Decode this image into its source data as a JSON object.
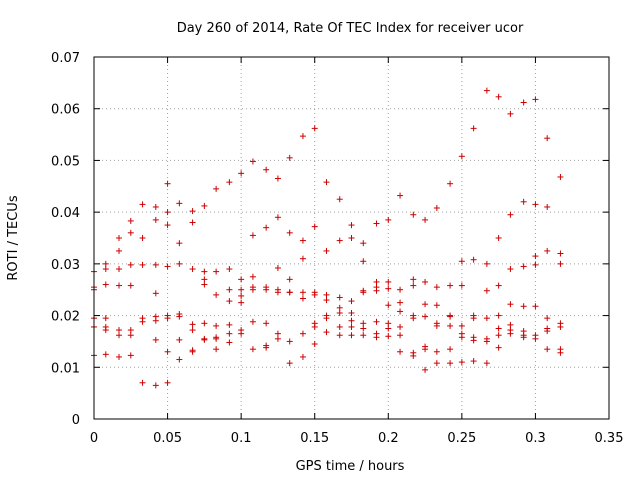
{
  "chart_data": {
    "type": "scatter",
    "title": "Day 260 of 2014, Rate Of TEC Index for receiver ucor",
    "xlabel": "GPS time / hours",
    "ylabel": "ROTI / TECUs",
    "xlim": [
      0,
      0.35
    ],
    "ylim": [
      0,
      0.07
    ],
    "xticks": [
      "0",
      "0.05",
      "0.1",
      "0.15",
      "0.2",
      "0.25",
      "0.3",
      "0.35"
    ],
    "yticks": [
      "0",
      "0.01",
      "0.02",
      "0.03",
      "0.04",
      "0.05",
      "0.06",
      "0.07"
    ],
    "grid": true,
    "marker": "+",
    "color": "#cc0000",
    "points": [
      [
        0.0,
        0.025
      ],
      [
        0.0,
        0.0255
      ],
      [
        0.0,
        0.0285
      ],
      [
        0.0,
        0.0195
      ],
      [
        0.0,
        0.0178
      ],
      [
        0.0,
        0.0123
      ],
      [
        0.008,
        0.03
      ],
      [
        0.008,
        0.029
      ],
      [
        0.008,
        0.026
      ],
      [
        0.008,
        0.0195
      ],
      [
        0.008,
        0.0178
      ],
      [
        0.008,
        0.0172
      ],
      [
        0.008,
        0.0125
      ],
      [
        0.017,
        0.035
      ],
      [
        0.017,
        0.0325
      ],
      [
        0.017,
        0.029
      ],
      [
        0.017,
        0.0258
      ],
      [
        0.017,
        0.0172
      ],
      [
        0.017,
        0.0162
      ],
      [
        0.017,
        0.012
      ],
      [
        0.025,
        0.0383
      ],
      [
        0.025,
        0.036
      ],
      [
        0.025,
        0.0298
      ],
      [
        0.025,
        0.0258
      ],
      [
        0.025,
        0.0172
      ],
      [
        0.025,
        0.0162
      ],
      [
        0.025,
        0.0123
      ],
      [
        0.033,
        0.0415
      ],
      [
        0.033,
        0.035
      ],
      [
        0.033,
        0.0298
      ],
      [
        0.033,
        0.0195
      ],
      [
        0.033,
        0.0188
      ],
      [
        0.033,
        0.007
      ],
      [
        0.042,
        0.041
      ],
      [
        0.042,
        0.0385
      ],
      [
        0.042,
        0.0298
      ],
      [
        0.042,
        0.0243
      ],
      [
        0.042,
        0.0198
      ],
      [
        0.042,
        0.019
      ],
      [
        0.042,
        0.0153
      ],
      [
        0.042,
        0.0065
      ],
      [
        0.05,
        0.0455
      ],
      [
        0.05,
        0.04
      ],
      [
        0.05,
        0.0375
      ],
      [
        0.05,
        0.0295
      ],
      [
        0.05,
        0.02
      ],
      [
        0.05,
        0.0195
      ],
      [
        0.05,
        0.013
      ],
      [
        0.05,
        0.007
      ],
      [
        0.058,
        0.0417
      ],
      [
        0.058,
        0.034
      ],
      [
        0.058,
        0.03
      ],
      [
        0.058,
        0.0203
      ],
      [
        0.058,
        0.0198
      ],
      [
        0.058,
        0.0153
      ],
      [
        0.058,
        0.0115
      ],
      [
        0.067,
        0.0402
      ],
      [
        0.067,
        0.038
      ],
      [
        0.067,
        0.029
      ],
      [
        0.067,
        0.0183
      ],
      [
        0.067,
        0.0172
      ],
      [
        0.067,
        0.0133
      ],
      [
        0.067,
        0.013
      ],
      [
        0.075,
        0.0412
      ],
      [
        0.075,
        0.0285
      ],
      [
        0.075,
        0.027
      ],
      [
        0.075,
        0.026
      ],
      [
        0.075,
        0.0185
      ],
      [
        0.075,
        0.0155
      ],
      [
        0.075,
        0.0153
      ],
      [
        0.083,
        0.0445
      ],
      [
        0.083,
        0.0285
      ],
      [
        0.083,
        0.024
      ],
      [
        0.083,
        0.018
      ],
      [
        0.083,
        0.0158
      ],
      [
        0.083,
        0.0155
      ],
      [
        0.083,
        0.0135
      ],
      [
        0.092,
        0.0458
      ],
      [
        0.092,
        0.029
      ],
      [
        0.092,
        0.025
      ],
      [
        0.092,
        0.0228
      ],
      [
        0.092,
        0.0182
      ],
      [
        0.092,
        0.0165
      ],
      [
        0.092,
        0.0148
      ],
      [
        0.1,
        0.0475
      ],
      [
        0.1,
        0.027
      ],
      [
        0.1,
        0.025
      ],
      [
        0.1,
        0.0238
      ],
      [
        0.1,
        0.0225
      ],
      [
        0.1,
        0.0172
      ],
      [
        0.1,
        0.0165
      ],
      [
        0.108,
        0.0498
      ],
      [
        0.108,
        0.0355
      ],
      [
        0.108,
        0.0275
      ],
      [
        0.108,
        0.0255
      ],
      [
        0.108,
        0.025
      ],
      [
        0.108,
        0.0188
      ],
      [
        0.108,
        0.0135
      ],
      [
        0.117,
        0.0482
      ],
      [
        0.117,
        0.037
      ],
      [
        0.117,
        0.0255
      ],
      [
        0.117,
        0.025
      ],
      [
        0.117,
        0.0185
      ],
      [
        0.117,
        0.0142
      ],
      [
        0.117,
        0.0138
      ],
      [
        0.125,
        0.0465
      ],
      [
        0.125,
        0.039
      ],
      [
        0.125,
        0.0292
      ],
      [
        0.125,
        0.025
      ],
      [
        0.125,
        0.0245
      ],
      [
        0.125,
        0.0165
      ],
      [
        0.125,
        0.0155
      ],
      [
        0.133,
        0.0505
      ],
      [
        0.133,
        0.036
      ],
      [
        0.133,
        0.027
      ],
      [
        0.133,
        0.0245
      ],
      [
        0.133,
        0.0245
      ],
      [
        0.133,
        0.015
      ],
      [
        0.133,
        0.0108
      ],
      [
        0.142,
        0.0547
      ],
      [
        0.142,
        0.0345
      ],
      [
        0.142,
        0.031
      ],
      [
        0.142,
        0.0245
      ],
      [
        0.142,
        0.0233
      ],
      [
        0.142,
        0.0165
      ],
      [
        0.142,
        0.012
      ],
      [
        0.15,
        0.0562
      ],
      [
        0.15,
        0.0372
      ],
      [
        0.15,
        0.0245
      ],
      [
        0.15,
        0.024
      ],
      [
        0.15,
        0.0185
      ],
      [
        0.15,
        0.0178
      ],
      [
        0.15,
        0.0145
      ],
      [
        0.158,
        0.0458
      ],
      [
        0.158,
        0.0325
      ],
      [
        0.158,
        0.024
      ],
      [
        0.158,
        0.023
      ],
      [
        0.158,
        0.02
      ],
      [
        0.158,
        0.0195
      ],
      [
        0.158,
        0.0168
      ],
      [
        0.167,
        0.0425
      ],
      [
        0.167,
        0.0345
      ],
      [
        0.167,
        0.0235
      ],
      [
        0.167,
        0.0215
      ],
      [
        0.167,
        0.0205
      ],
      [
        0.167,
        0.0178
      ],
      [
        0.167,
        0.0162
      ],
      [
        0.175,
        0.0375
      ],
      [
        0.175,
        0.035
      ],
      [
        0.175,
        0.0228
      ],
      [
        0.175,
        0.0205
      ],
      [
        0.175,
        0.019
      ],
      [
        0.175,
        0.0178
      ],
      [
        0.175,
        0.0162
      ],
      [
        0.183,
        0.034
      ],
      [
        0.183,
        0.0305
      ],
      [
        0.183,
        0.0248
      ],
      [
        0.183,
        0.0245
      ],
      [
        0.183,
        0.0185
      ],
      [
        0.183,
        0.0175
      ],
      [
        0.183,
        0.0162
      ],
      [
        0.192,
        0.0378
      ],
      [
        0.192,
        0.0265
      ],
      [
        0.192,
        0.0255
      ],
      [
        0.192,
        0.0248
      ],
      [
        0.192,
        0.0188
      ],
      [
        0.192,
        0.0165
      ],
      [
        0.192,
        0.0158
      ],
      [
        0.2,
        0.0385
      ],
      [
        0.2,
        0.0265
      ],
      [
        0.2,
        0.0252
      ],
      [
        0.2,
        0.022
      ],
      [
        0.2,
        0.0185
      ],
      [
        0.2,
        0.0175
      ],
      [
        0.2,
        0.016
      ],
      [
        0.208,
        0.0432
      ],
      [
        0.208,
        0.025
      ],
      [
        0.208,
        0.0225
      ],
      [
        0.208,
        0.0208
      ],
      [
        0.208,
        0.0178
      ],
      [
        0.208,
        0.0162
      ],
      [
        0.208,
        0.013
      ],
      [
        0.217,
        0.0395
      ],
      [
        0.217,
        0.027
      ],
      [
        0.217,
        0.0258
      ],
      [
        0.217,
        0.02
      ],
      [
        0.217,
        0.0195
      ],
      [
        0.217,
        0.0128
      ],
      [
        0.217,
        0.0122
      ],
      [
        0.225,
        0.0385
      ],
      [
        0.225,
        0.0265
      ],
      [
        0.225,
        0.0222
      ],
      [
        0.225,
        0.0198
      ],
      [
        0.225,
        0.014
      ],
      [
        0.225,
        0.0135
      ],
      [
        0.225,
        0.0095
      ],
      [
        0.233,
        0.0408
      ],
      [
        0.233,
        0.0255
      ],
      [
        0.233,
        0.022
      ],
      [
        0.233,
        0.0185
      ],
      [
        0.233,
        0.018
      ],
      [
        0.233,
        0.013
      ],
      [
        0.233,
        0.0108
      ],
      [
        0.242,
        0.0455
      ],
      [
        0.242,
        0.0258
      ],
      [
        0.242,
        0.02
      ],
      [
        0.242,
        0.0198
      ],
      [
        0.242,
        0.018
      ],
      [
        0.242,
        0.0135
      ],
      [
        0.242,
        0.0108
      ],
      [
        0.25,
        0.0508
      ],
      [
        0.25,
        0.0305
      ],
      [
        0.25,
        0.0258
      ],
      [
        0.25,
        0.018
      ],
      [
        0.25,
        0.0165
      ],
      [
        0.25,
        0.0158
      ],
      [
        0.25,
        0.011
      ],
      [
        0.258,
        0.0562
      ],
      [
        0.258,
        0.0308
      ],
      [
        0.258,
        0.02
      ],
      [
        0.258,
        0.0195
      ],
      [
        0.258,
        0.0158
      ],
      [
        0.258,
        0.0152
      ],
      [
        0.258,
        0.0112
      ],
      [
        0.267,
        0.0635
      ],
      [
        0.267,
        0.03
      ],
      [
        0.267,
        0.0248
      ],
      [
        0.267,
        0.0195
      ],
      [
        0.267,
        0.0155
      ],
      [
        0.267,
        0.015
      ],
      [
        0.267,
        0.0108
      ],
      [
        0.275,
        0.0623
      ],
      [
        0.275,
        0.035
      ],
      [
        0.275,
        0.0258
      ],
      [
        0.275,
        0.02
      ],
      [
        0.275,
        0.0175
      ],
      [
        0.275,
        0.0162
      ],
      [
        0.275,
        0.0138
      ],
      [
        0.283,
        0.059
      ],
      [
        0.283,
        0.0395
      ],
      [
        0.283,
        0.029
      ],
      [
        0.283,
        0.0222
      ],
      [
        0.283,
        0.0182
      ],
      [
        0.283,
        0.0172
      ],
      [
        0.283,
        0.0165
      ],
      [
        0.292,
        0.0612
      ],
      [
        0.292,
        0.042
      ],
      [
        0.292,
        0.0295
      ],
      [
        0.292,
        0.0218
      ],
      [
        0.292,
        0.017
      ],
      [
        0.292,
        0.0162
      ],
      [
        0.292,
        0.0158
      ],
      [
        0.3,
        0.0618
      ],
      [
        0.3,
        0.0415
      ],
      [
        0.3,
        0.0315
      ],
      [
        0.3,
        0.0298
      ],
      [
        0.3,
        0.0218
      ],
      [
        0.3,
        0.0162
      ],
      [
        0.3,
        0.0155
      ],
      [
        0.308,
        0.0543
      ],
      [
        0.308,
        0.041
      ],
      [
        0.308,
        0.0325
      ],
      [
        0.308,
        0.0195
      ],
      [
        0.308,
        0.0175
      ],
      [
        0.308,
        0.017
      ],
      [
        0.308,
        0.0135
      ],
      [
        0.317,
        0.0468
      ],
      [
        0.317,
        0.032
      ],
      [
        0.317,
        0.03
      ],
      [
        0.317,
        0.0185
      ],
      [
        0.317,
        0.0178
      ],
      [
        0.317,
        0.0135
      ],
      [
        0.317,
        0.0128
      ]
    ]
  }
}
